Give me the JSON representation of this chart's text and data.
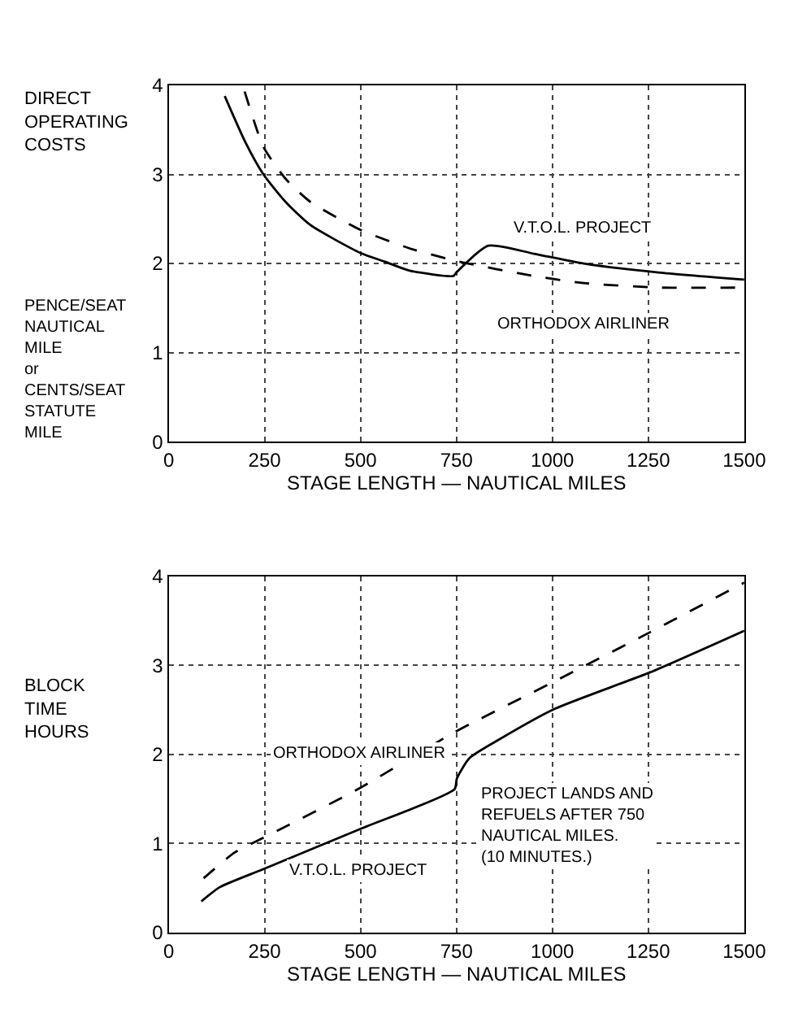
{
  "chart_data": [
    {
      "type": "line",
      "xlabel": "STAGE LENGTH — NAUTICAL MILES",
      "ylabel": "DIRECT\nOPERATING\nCOSTS",
      "annotations": [
        "PENCE/SEAT\nNAUTICAL\nMILE\nor\nCENTS/SEAT\nSTATUTE\nMILE"
      ],
      "xlim": [
        0,
        1500
      ],
      "xticks": [
        0,
        250,
        500,
        750,
        1000,
        1250,
        1500
      ],
      "ylim": [
        0,
        4
      ],
      "yticks": [
        0,
        1,
        2,
        3,
        4
      ],
      "grid": true,
      "marker": "none",
      "series": [
        {
          "name": "V.T.O.L. PROJECT",
          "color": "#000000",
          "line_style": "solid",
          "x": [
            146,
            200,
            247,
            305,
            370,
            499,
            564,
            628,
            742,
            750,
            833,
            952,
            1082,
            1276,
            1500
          ],
          "values": [
            3.88,
            3.36,
            3.0,
            2.69,
            2.43,
            2.12,
            2.02,
            1.92,
            1.86,
            1.9,
            2.2,
            2.11,
            2.0,
            1.9,
            1.82
          ]
        },
        {
          "name": "ORTHODOX AIRLINER",
          "color": "#000000",
          "line_style": "dashed",
          "x": [
            198,
            247,
            305,
            370,
            499,
            628,
            758,
            952,
            1082,
            1276,
            1500
          ],
          "values": [
            3.93,
            3.31,
            2.95,
            2.69,
            2.38,
            2.17,
            2.02,
            1.86,
            1.78,
            1.73,
            1.73
          ]
        }
      ]
    },
    {
      "type": "line",
      "xlabel": "STAGE LENGTH — NAUTICAL MILES",
      "ylabel": "BLOCK\nTIME\nHOURS",
      "annotations": [
        "PROJECT LANDS AND\nREFUELS AFTER 750\nNAUTICAL MILES.\n(10 MINUTES.)"
      ],
      "xlim": [
        0,
        1500
      ],
      "xticks": [
        0,
        250,
        500,
        750,
        1000,
        1250,
        1500
      ],
      "ylim": [
        0,
        4
      ],
      "yticks": [
        0,
        1,
        2,
        3,
        4
      ],
      "grid": true,
      "marker": "none",
      "series": [
        {
          "name": "ORTHODOX AIRLINER",
          "color": "#000000",
          "line_style": "dashed",
          "x": [
            91,
            172,
            245,
            497,
            745,
            1005,
            1253,
            1500
          ],
          "values": [
            0.61,
            0.9,
            1.06,
            1.62,
            2.25,
            2.82,
            3.37,
            3.93
          ]
        },
        {
          "name": "V.T.O.L. PROJECT",
          "color": "#000000",
          "line_style": "solid",
          "x": [
            85,
            133,
            245,
            497,
            745,
            751,
            784,
            862,
            1005,
            1253,
            1500
          ],
          "values": [
            0.35,
            0.51,
            0.71,
            1.16,
            1.61,
            1.73,
            1.96,
            2.17,
            2.51,
            2.92,
            3.39
          ]
        }
      ]
    }
  ]
}
